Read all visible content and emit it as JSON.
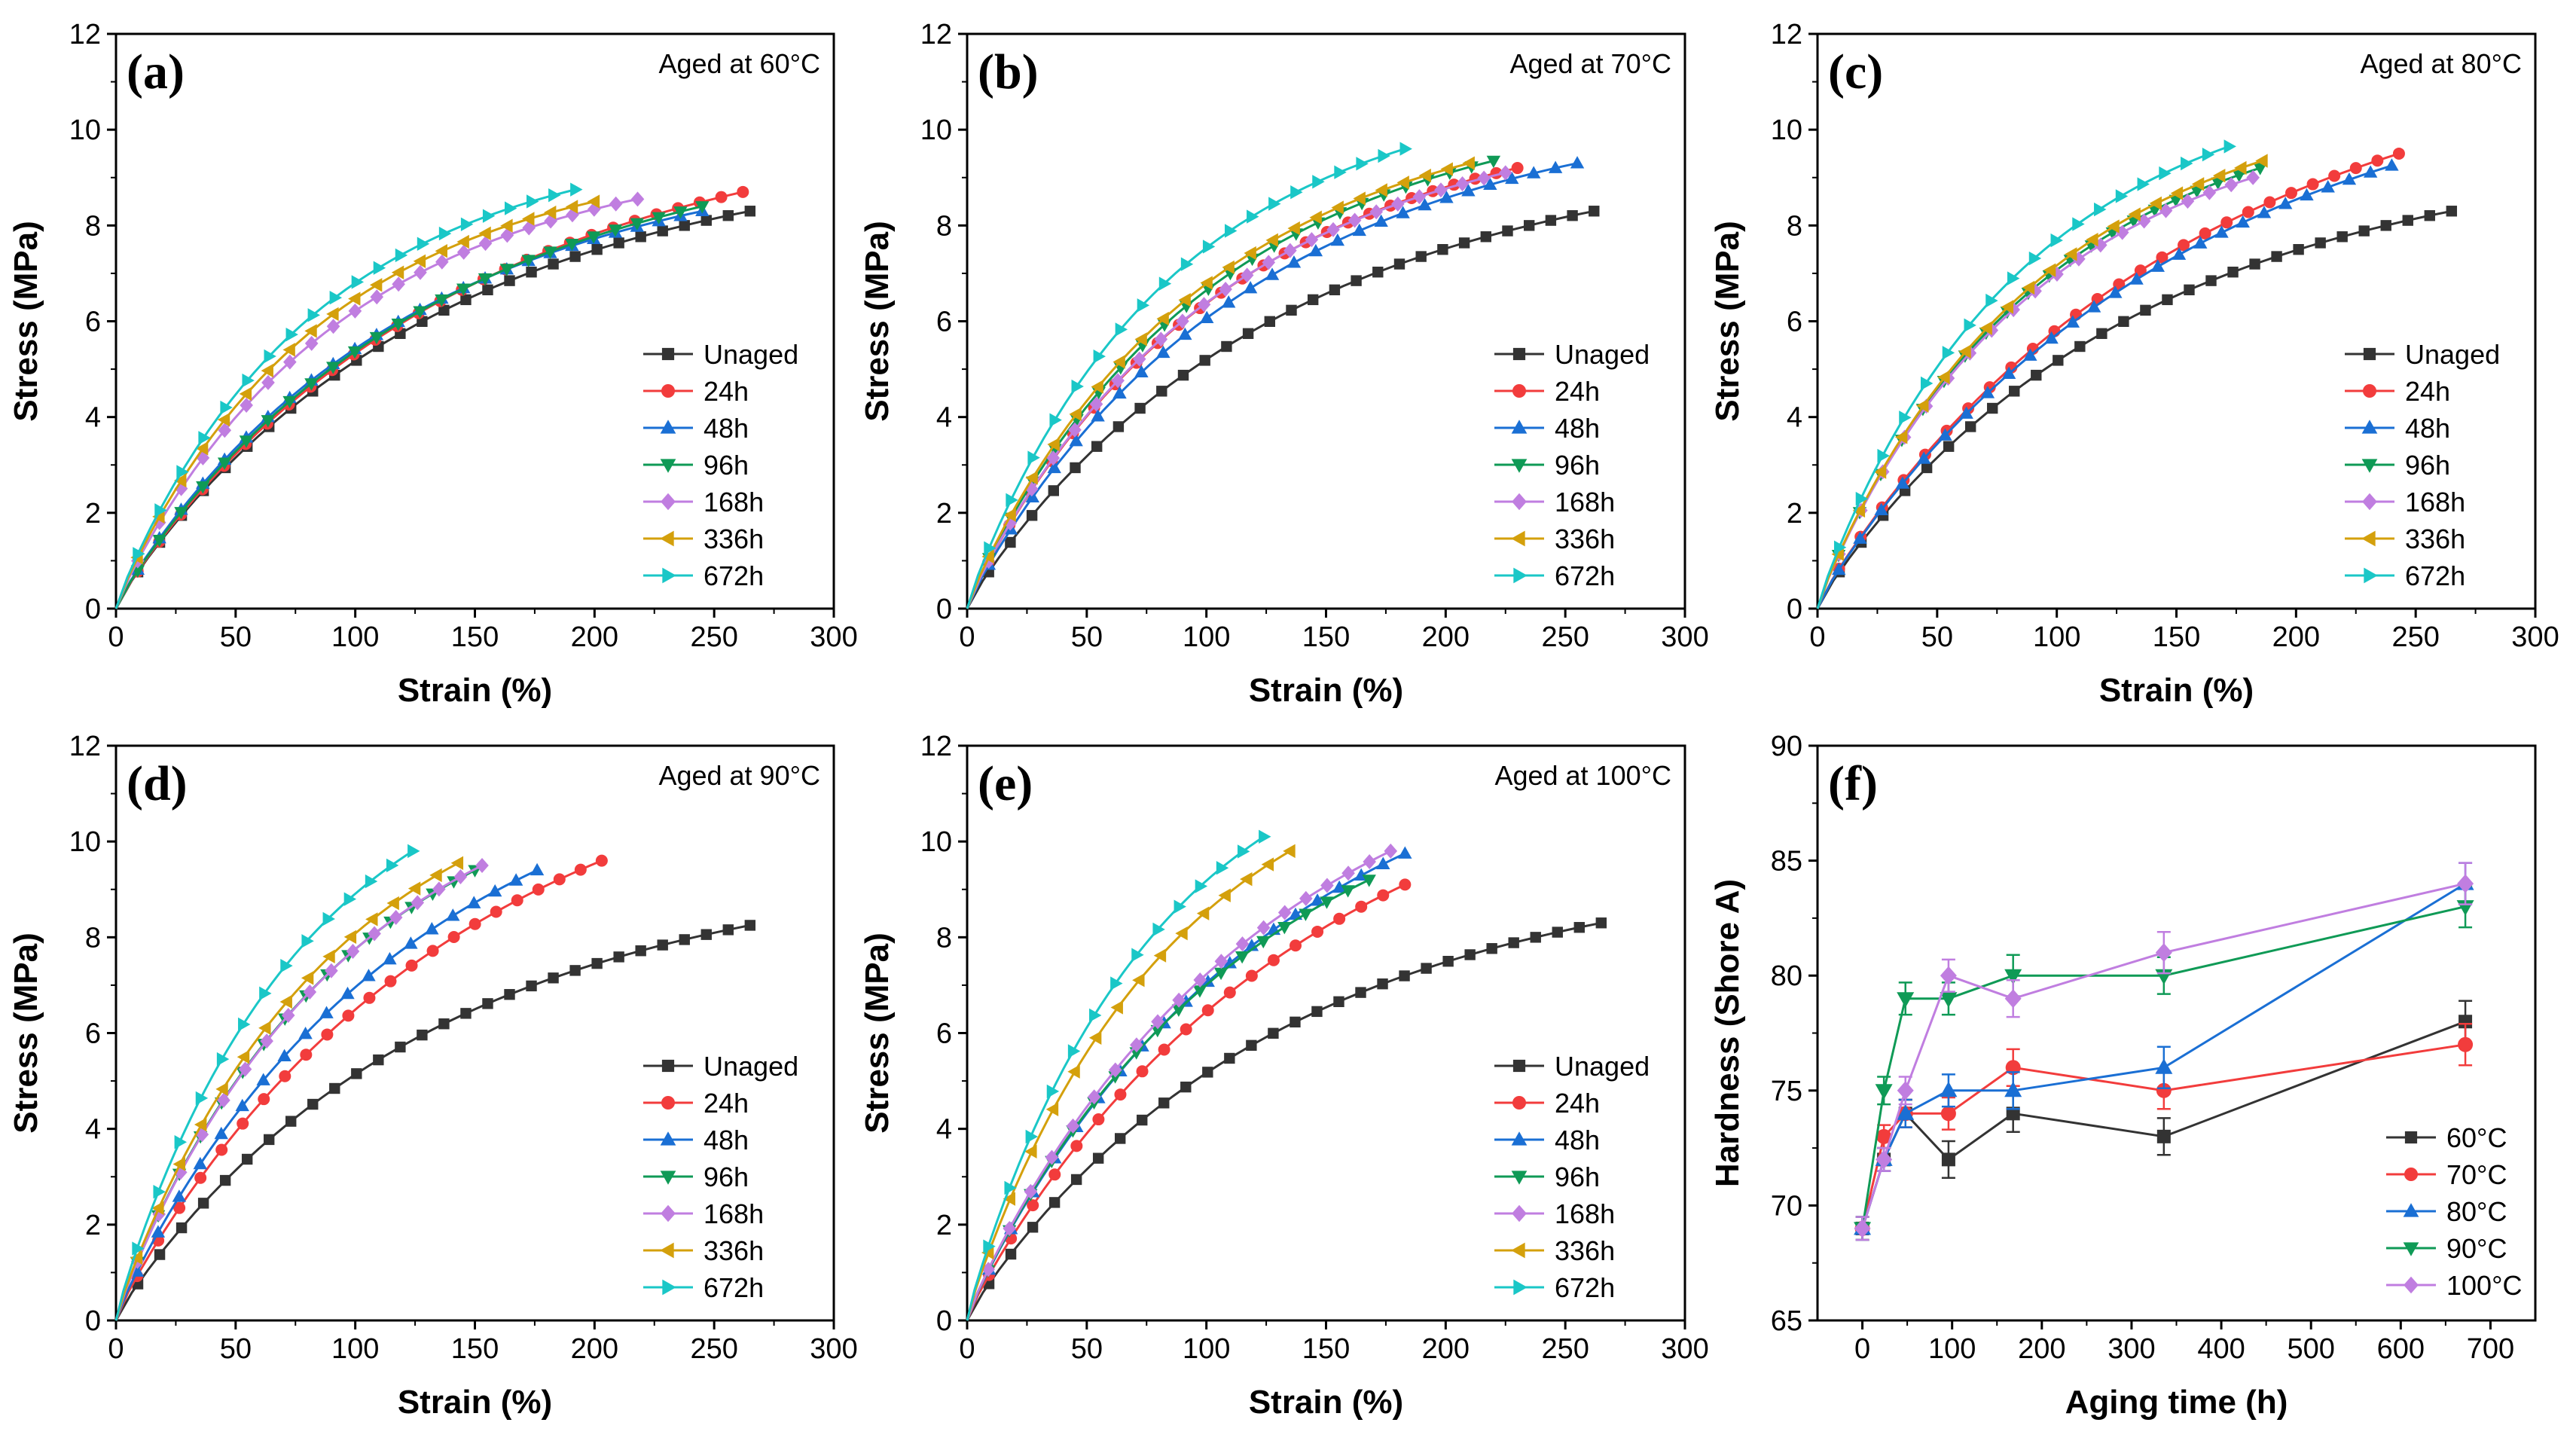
{
  "colors": {
    "Unaged": "#333333",
    "24h": "#f23c3c",
    "48h": "#1a6fd4",
    "96h": "#0f9a56",
    "168h": "#c07ee0",
    "336h": "#d4a00c",
    "672h": "#1ac7c7",
    "60°C": "#333333",
    "70°C": "#f23c3c",
    "80°C": "#1a6fd4",
    "90°C": "#0f9a56",
    "100°C": "#c07ee0"
  },
  "chart_data": [
    {
      "id": "a",
      "panel_label": "(a)",
      "type": "line",
      "annotation": "Aged at 60°C",
      "xlabel": "Strain (%)",
      "ylabel": "Stress (MPa)",
      "xlim": [
        0,
        300
      ],
      "ylim": [
        0,
        12
      ],
      "xticks": [
        0,
        50,
        100,
        150,
        200,
        250,
        300
      ],
      "yticks": [
        0,
        2,
        4,
        6,
        8,
        10,
        12
      ],
      "legend_position": "center-right",
      "series": [
        {
          "name": "Unaged",
          "end": [
            265,
            8.3
          ],
          "k": 0.7
        },
        {
          "name": "24h",
          "end": [
            262,
            8.7
          ],
          "k": 0.65
        },
        {
          "name": "48h",
          "end": [
            245,
            8.3
          ],
          "k": 0.7
        },
        {
          "name": "96h",
          "end": [
            245,
            8.4
          ],
          "k": 0.65
        },
        {
          "name": "168h",
          "end": [
            218,
            8.55
          ],
          "k": 0.8
        },
        {
          "name": "336h",
          "end": [
            200,
            8.5
          ],
          "k": 0.8
        },
        {
          "name": "672h",
          "end": [
            192,
            8.75
          ],
          "k": 0.8
        }
      ]
    },
    {
      "id": "b",
      "panel_label": "(b)",
      "type": "line",
      "annotation": "Aged at 70°C",
      "xlabel": "Strain (%)",
      "ylabel": "Stress (MPa)",
      "xlim": [
        0,
        300
      ],
      "ylim": [
        0,
        12
      ],
      "xticks": [
        0,
        50,
        100,
        150,
        200,
        250,
        300
      ],
      "yticks": [
        0,
        2,
        4,
        6,
        8,
        10,
        12
      ],
      "legend_position": "center-right",
      "series": [
        {
          "name": "Unaged",
          "end": [
            262,
            8.3
          ],
          "k": 0.7
        },
        {
          "name": "24h",
          "end": [
            230,
            9.2
          ],
          "k": 0.75
        },
        {
          "name": "48h",
          "end": [
            255,
            9.3
          ],
          "k": 0.75
        },
        {
          "name": "96h",
          "end": [
            220,
            9.35
          ],
          "k": 0.75
        },
        {
          "name": "168h",
          "end": [
            225,
            9.1
          ],
          "k": 0.75
        },
        {
          "name": "336h",
          "end": [
            210,
            9.3
          ],
          "k": 0.75
        },
        {
          "name": "672h",
          "end": [
            183,
            9.6
          ],
          "k": 0.75
        }
      ]
    },
    {
      "id": "c",
      "panel_label": "(c)",
      "type": "line",
      "annotation": "Aged at 80°C",
      "xlabel": "Strain (%)",
      "ylabel": "Stress (MPa)",
      "xlim": [
        0,
        300
      ],
      "ylim": [
        0,
        12
      ],
      "xticks": [
        0,
        50,
        100,
        150,
        200,
        250,
        300
      ],
      "yticks": [
        0,
        2,
        4,
        6,
        8,
        10,
        12
      ],
      "legend_position": "center-right",
      "series": [
        {
          "name": "Unaged",
          "end": [
            265,
            8.3
          ],
          "k": 0.7
        },
        {
          "name": "24h",
          "end": [
            243,
            9.5
          ],
          "k": 0.55
        },
        {
          "name": "48h",
          "end": [
            240,
            9.25
          ],
          "k": 0.55
        },
        {
          "name": "96h",
          "end": [
            185,
            9.2
          ],
          "k": 0.7
        },
        {
          "name": "168h",
          "end": [
            182,
            9.0
          ],
          "k": 0.7
        },
        {
          "name": "336h",
          "end": [
            186,
            9.35
          ],
          "k": 0.7
        },
        {
          "name": "672h",
          "end": [
            172,
            9.65
          ],
          "k": 0.7
        }
      ]
    },
    {
      "id": "d",
      "panel_label": "(d)",
      "type": "line",
      "annotation": "Aged at 90°C",
      "xlabel": "Strain (%)",
      "ylabel": "Stress (MPa)",
      "xlim": [
        0,
        300
      ],
      "ylim": [
        0,
        12
      ],
      "xticks": [
        0,
        50,
        100,
        150,
        200,
        250,
        300
      ],
      "yticks": [
        0,
        2,
        4,
        6,
        8,
        10,
        12
      ],
      "legend_position": "center-right",
      "series": [
        {
          "name": "Unaged",
          "end": [
            265,
            8.25
          ],
          "k": 0.7
        },
        {
          "name": "24h",
          "end": [
            203,
            9.6
          ],
          "k": 0.5
        },
        {
          "name": "48h",
          "end": [
            176,
            9.4
          ],
          "k": 0.5
        },
        {
          "name": "96h",
          "end": [
            150,
            9.4
          ],
          "k": 0.55
        },
        {
          "name": "168h",
          "end": [
            153,
            9.5
          ],
          "k": 0.55
        },
        {
          "name": "336h",
          "end": [
            143,
            9.55
          ],
          "k": 0.55
        },
        {
          "name": "672h",
          "end": [
            124,
            9.8
          ],
          "k": 0.55
        }
      ]
    },
    {
      "id": "e",
      "panel_label": "(e)",
      "type": "line",
      "annotation": "Aged at 100°C",
      "xlabel": "Strain (%)",
      "ylabel": "Stress (MPa)",
      "xlim": [
        0,
        300
      ],
      "ylim": [
        0,
        12
      ],
      "xticks": [
        0,
        50,
        100,
        150,
        200,
        250,
        300
      ],
      "yticks": [
        0,
        2,
        4,
        6,
        8,
        10,
        12
      ],
      "legend_position": "center-right",
      "series": [
        {
          "name": "Unaged",
          "end": [
            265,
            8.3
          ],
          "k": 0.7
        },
        {
          "name": "24h",
          "end": [
            183,
            9.1
          ],
          "k": 0.45
        },
        {
          "name": "48h",
          "end": [
            183,
            9.75
          ],
          "k": 0.5
        },
        {
          "name": "96h",
          "end": [
            168,
            9.2
          ],
          "k": 0.5
        },
        {
          "name": "168h",
          "end": [
            177,
            9.8
          ],
          "k": 0.5
        },
        {
          "name": "336h",
          "end": [
            135,
            9.8
          ],
          "k": 0.55
        },
        {
          "name": "672h",
          "end": [
            124,
            10.1
          ],
          "k": 0.55
        }
      ]
    },
    {
      "id": "f",
      "panel_label": "(f)",
      "type": "line",
      "xlabel": "Aging time (h)",
      "ylabel": "Hardness (Shore A)",
      "xlim": [
        -50,
        750
      ],
      "ylim": [
        65,
        90
      ],
      "xticks": [
        0,
        100,
        200,
        300,
        400,
        500,
        600,
        700
      ],
      "yticks": [
        65,
        70,
        75,
        80,
        85,
        90
      ],
      "legend_position": "bottom-right",
      "x": [
        0,
        24,
        48,
        96,
        168,
        336,
        672
      ],
      "series": [
        {
          "name": "60°C",
          "values": [
            69,
            72,
            74,
            72,
            74,
            73,
            78
          ],
          "err": [
            0.5,
            0.5,
            0.6,
            0.8,
            0.8,
            0.8,
            0.9
          ]
        },
        {
          "name": "70°C",
          "values": [
            69,
            73,
            74,
            74,
            76,
            75,
            77
          ],
          "err": [
            0.5,
            0.5,
            0.6,
            0.7,
            0.8,
            0.8,
            0.9
          ]
        },
        {
          "name": "80°C",
          "values": [
            69,
            72,
            74,
            75,
            75,
            76,
            84
          ],
          "err": [
            0.5,
            0.5,
            0.6,
            0.7,
            0.8,
            0.9,
            0.9
          ]
        },
        {
          "name": "90°C",
          "values": [
            69,
            75,
            79,
            79,
            80,
            80,
            83
          ],
          "err": [
            0.5,
            0.6,
            0.7,
            0.7,
            0.9,
            0.8,
            0.9
          ]
        },
        {
          "name": "100°C",
          "values": [
            69,
            72,
            75,
            80,
            79,
            81,
            84
          ],
          "err": [
            0.5,
            0.5,
            0.6,
            0.7,
            0.8,
            0.9,
            0.9
          ]
        }
      ]
    }
  ]
}
